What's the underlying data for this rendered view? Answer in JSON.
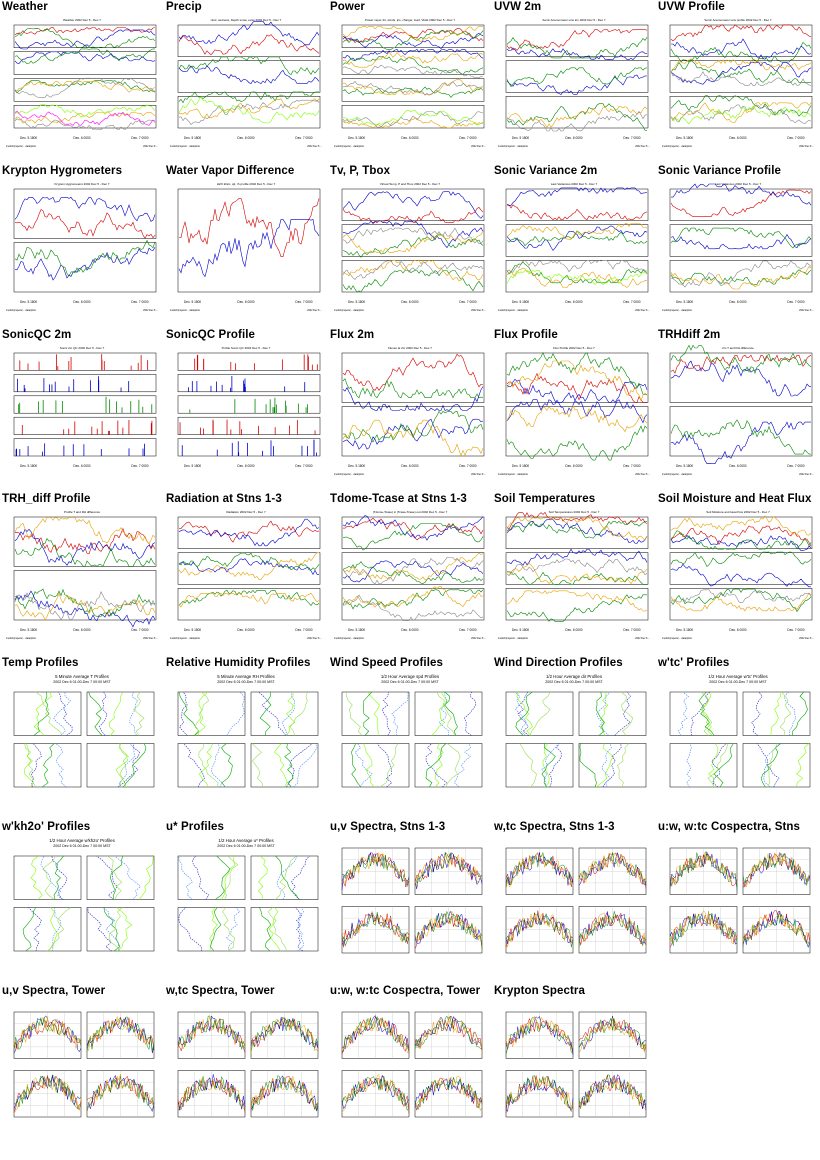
{
  "gallery": [
    {
      "title": "Weather",
      "kind": "ts",
      "panels": 4,
      "chart_title": "Weather 2002 Dec 5 - Dec 7"
    },
    {
      "title": "Precip",
      "kind": "ts",
      "panels": 3,
      "chart_title": "rainr, wetness, Depth snow, evap 2002 Dec 5 - Dec 7"
    },
    {
      "title": "Power",
      "kind": "ts",
      "panels": 4,
      "chart_title": "Power vspw, ibt, winds, ips, charger, load, Vbatt 2002 Dec 5 - Dec 7"
    },
    {
      "title": "UVW 2m",
      "kind": "ts",
      "panels": 3,
      "chart_title": "Sonic Anemometer uvw 2m 2002 Dec 5 - Dec 7"
    },
    {
      "title": "UVW Profile",
      "kind": "ts",
      "panels": 3,
      "chart_title": "Sonic Anemometer uvw profile 2002 Dec 5 - Dec 7"
    },
    {
      "title": "Krypton Hygrometers",
      "kind": "ts",
      "panels": 2,
      "chart_title": "Krypton Hygrometers 2002 Dec 5 - Dec 7"
    },
    {
      "title": "Water Vapor Difference",
      "kind": "ts",
      "panels": 1,
      "chart_title": "H2O kh2o, q2, rh profile 2002 Dec 5 - Dec 7"
    },
    {
      "title": "Tv, P, Tbox",
      "kind": "ts",
      "panels": 3,
      "chart_title": "Virtual Temp, P and Tbox 2002 Dec 5 - Dec 7"
    },
    {
      "title": "Sonic Variance 2m",
      "kind": "ts",
      "panels": 3,
      "chart_title": "Last Variances 2002 Dec 5 - Dec 7"
    },
    {
      "title": "Sonic Variance Profile",
      "kind": "ts",
      "panels": 3,
      "chart_title": "Last Variances 2002 Dec 5 - Dec 7"
    },
    {
      "title": "SonicQC 2m",
      "kind": "qc",
      "panels": 5,
      "chart_title": "Sonic 2m QC 2002 Dec 5 - Dec 7"
    },
    {
      "title": "SonicQC Profile",
      "kind": "qc",
      "panels": 5,
      "chart_title": "Profile Sonic QC 2002 Dec 5 - Dec 7"
    },
    {
      "title": "Flux 2m",
      "kind": "ts",
      "panels": 2,
      "chart_title": "Fluxes at 2m 2002 Dec 5 - Dec 7"
    },
    {
      "title": "Flux Profile",
      "kind": "ts",
      "panels": 2,
      "chart_title": "Flux Profile 2002 Dec 5 - Dec 7"
    },
    {
      "title": "TRHdiff 2m",
      "kind": "ts",
      "panels": 2,
      "chart_title": "2m T and RH difference"
    },
    {
      "title": "TRH_diff Profile",
      "kind": "ts",
      "panels": 2,
      "chart_title": "Profile T and RH difference"
    },
    {
      "title": "Radiation at Stns 1-3",
      "kind": "ts",
      "panels": 3,
      "chart_title": "Radiation 2002 Dec 5 - Dec 7"
    },
    {
      "title": "Tdome-Tcase at Stns 1-3",
      "kind": "ts",
      "panels": 3,
      "chart_title": "(Tdome-Tcase) in (Tcase-Tcase) out 2002 Dec 5 - Dec 7"
    },
    {
      "title": "Soil Temperatures",
      "kind": "ts",
      "panels": 3,
      "chart_title": "Soil Temperatures 2002 Dec 5 - Dec 7"
    },
    {
      "title": "Soil Moisture and Heat Flux",
      "kind": "ts",
      "panels": 3,
      "chart_title": "Soil Moisture and Heat Flux 2002 Dec 5 - Dec 7"
    },
    {
      "title": "Temp Profiles",
      "kind": "profile",
      "panels": 4,
      "chart_title": "5 Minute Average T Profiles",
      "chart_subtitle": "2002 Dec 6 01:00-Dec 7 00:00 MST"
    },
    {
      "title": "Relative Humidity Profiles",
      "kind": "profile",
      "panels": 4,
      "chart_title": "5 Minute Average RH Profiles",
      "chart_subtitle": "2002 Dec 6 01:00-Dec 7 00:00 MST"
    },
    {
      "title": "Wind Speed Profiles",
      "kind": "profile",
      "panels": 4,
      "chart_title": "1/2 Hour Average spd Profiles",
      "chart_subtitle": "2002 Dec 6 01:00-Dec 7 00:00 MST"
    },
    {
      "title": "Wind Direction Profiles",
      "kind": "profile",
      "panels": 4,
      "chart_title": "1/2 Hour Average dir Profiles",
      "chart_subtitle": "2002 Dec 6 01:00-Dec 7 00:00 MST"
    },
    {
      "title": "w'tc' Profiles",
      "kind": "profile",
      "panels": 4,
      "chart_title": "1/2 Hour Average w'tc' Profiles",
      "chart_subtitle": "2002 Dec 6 01:00-Dec 7 00:00 MST"
    },
    {
      "title": "w'kh2o' Profiles",
      "kind": "profile",
      "panels": 4,
      "chart_title": "1/2 Hour Average w'kh2o' Profiles",
      "chart_subtitle": "2002 Dec 6 01:00-Dec 7 00:00 MST"
    },
    {
      "title": "u* Profiles",
      "kind": "profile",
      "panels": 4,
      "chart_title": "1/2 Hour Average u* Profiles",
      "chart_subtitle": "2002 Dec 6 01:00-Dec 7 00:00 MST"
    },
    {
      "title": "u,v Spectra, Stns 1-3",
      "kind": "spectra",
      "panels": 4,
      "chart_title": "",
      "chart_subtitle": ""
    },
    {
      "title": "w,tc Spectra, Stns 1-3",
      "kind": "spectra",
      "panels": 4,
      "chart_title": "",
      "chart_subtitle": ""
    },
    {
      "title": "u:w, w:tc Cospectra, Stns",
      "kind": "spectra",
      "panels": 4,
      "chart_title": "",
      "chart_subtitle": ""
    },
    {
      "title": "u,v Spectra, Tower",
      "kind": "spectra",
      "panels": 4,
      "chart_title": "",
      "chart_subtitle": ""
    },
    {
      "title": "w,tc Spectra, Tower",
      "kind": "spectra",
      "panels": 4,
      "chart_title": "",
      "chart_subtitle": ""
    },
    {
      "title": "u:w, w:tc Cospectra, Tower",
      "kind": "spectra",
      "panels": 4,
      "chart_title": "",
      "chart_subtitle": ""
    },
    {
      "title": "Krypton Spectra",
      "kind": "spectra",
      "panels": 4,
      "chart_title": "",
      "chart_subtitle": ""
    }
  ],
  "colors": {
    "background": "#ffffff",
    "title_text": "#000000",
    "axis": "#000000",
    "series": [
      "#d40000",
      "#0000cc",
      "#008800",
      "#e8a000",
      "#888888",
      "#7fff00",
      "#ff00ff"
    ]
  },
  "axis_labels": {
    "ts_dates": [
      "Dec. 5 1800",
      "Dec. 6 0000",
      "Dec. 7 0000"
    ],
    "footer_left": "/net/isf/projects/... data/plots",
    "footer_right": "2002 Dec 8 ..."
  }
}
